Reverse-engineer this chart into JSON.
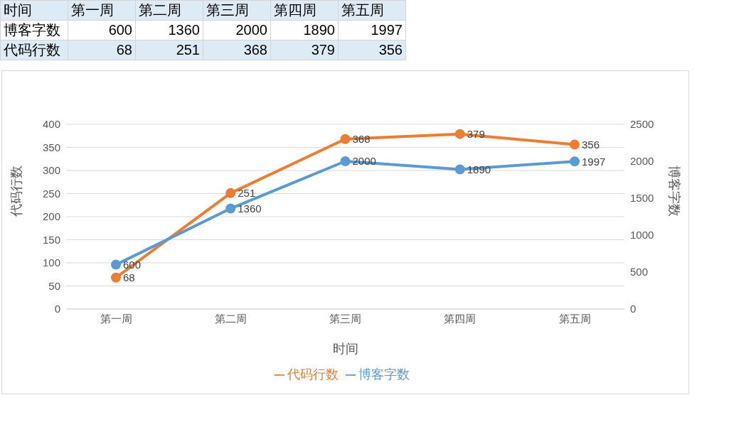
{
  "chart_data": [
    {
      "type": "other",
      "xlabel": "时间",
      "categories": [
        "第一周",
        "第二周",
        "第三周",
        "第四周",
        "第五周"
      ],
      "series": [
        {
          "name": "博客字数",
          "values": [
            600,
            1360,
            2000,
            1890,
            1997
          ]
        },
        {
          "name": "代码行数",
          "values": [
            68,
            251,
            368,
            379,
            356
          ]
        }
      ],
      "data_labels": true
    },
    {
      "type": "line",
      "xlabel": "时间",
      "ylabel": "代码行数",
      "y2label": "博客字数",
      "categories": [
        "第一周",
        "第二周",
        "第三周",
        "第四周",
        "第五周"
      ],
      "series": [
        {
          "name": "博客字数",
          "color": "#5b9bd5",
          "values": [
            600,
            1360,
            2000,
            1890,
            1997
          ],
          "axis": "y2"
        },
        {
          "name": "代码行数",
          "color": "#ed7d31",
          "values": [
            68,
            251,
            368,
            379,
            356
          ]
        }
      ],
      "ylim": [
        0,
        400
      ],
      "yticks": [
        0,
        50,
        100,
        150,
        200,
        250,
        300,
        350,
        400
      ],
      "y2lim": [
        0,
        2500
      ],
      "y2ticks": [
        0,
        500,
        1000,
        1500,
        2000,
        2500
      ],
      "grid": "y",
      "legend": "bottom",
      "marker": "circle",
      "line_style": "solid",
      "data_labels": true
    }
  ]
}
